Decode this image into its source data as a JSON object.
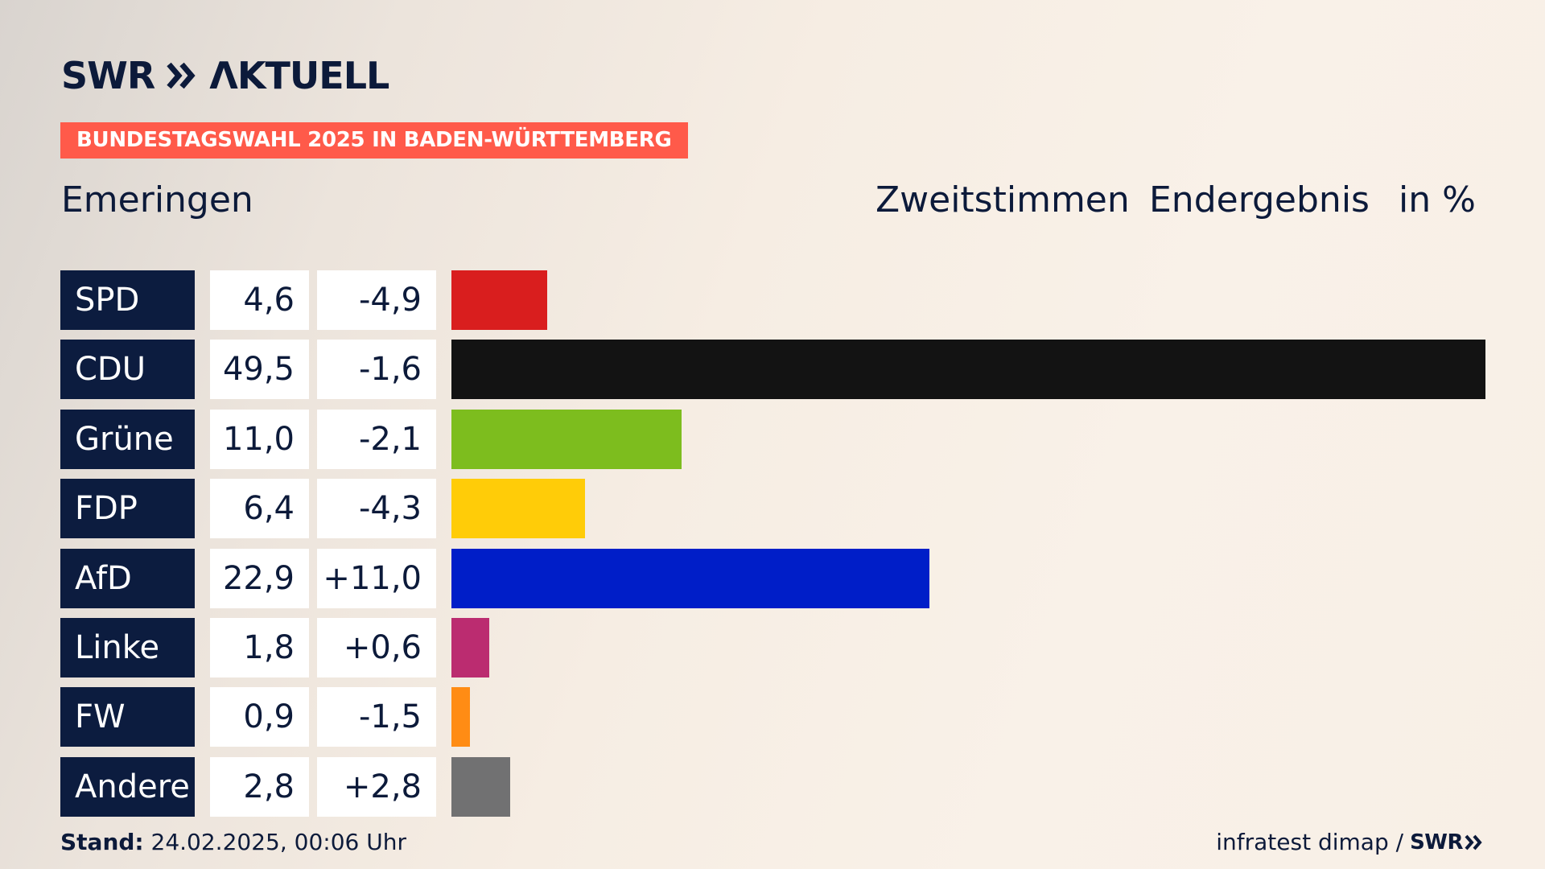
{
  "brand": {
    "logo_swr": "SWR",
    "logo_aktuell": "ΛKTUELL"
  },
  "banner": "BUNDESTAGSWAHL 2025 IN BADEN-WÜRTTEMBERG",
  "place": "Emeringen",
  "header": {
    "vote_type": "Zweitstimmen",
    "status": "Endergebnis",
    "unit": "in %"
  },
  "chart_data": {
    "type": "bar",
    "orientation": "horizontal",
    "categories": [
      "SPD",
      "CDU",
      "Grüne",
      "FDP",
      "AfD",
      "Linke",
      "FW",
      "Andere"
    ],
    "values": [
      4.6,
      49.5,
      11.0,
      6.4,
      22.9,
      1.8,
      0.9,
      2.8
    ],
    "value_labels": [
      "4,6",
      "49,5",
      "11,0",
      "6,4",
      "22,9",
      "1,8",
      "0,9",
      "2,8"
    ],
    "diff_labels": [
      "-4,9",
      "-1,6",
      "-2,1",
      "-4,3",
      "+11,0",
      "+0,6",
      "-1,5",
      "+2,8"
    ],
    "colors": [
      "#d91e1e",
      "#131313",
      "#7dbd1e",
      "#ffcc08",
      "#001ec8",
      "#bb2c70",
      "#ff8c14",
      "#717172"
    ],
    "xlim": [
      0,
      49.5
    ],
    "grid": false,
    "legend": "none"
  },
  "footer": {
    "stand_label": "Stand:",
    "stand_value": " 24.02.2025, 00:06 Uhr",
    "source": "infratest dimap /",
    "source_logo": "SWR"
  }
}
